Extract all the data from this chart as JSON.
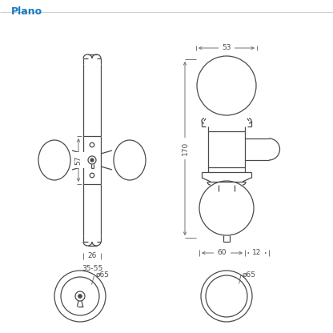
{
  "title": "Plano",
  "title_color": "#1a7abf",
  "bg_color": "#ffffff",
  "line_color": "#4a4a4a",
  "dim_color": "#4a4a4a",
  "dim_line_color": "#6a6a6a",
  "fig_width": 4.16,
  "fig_height": 4.16,
  "dpi": 100,
  "annotations": {
    "dim_53": "53",
    "dim_170": "170",
    "dim_57": "57",
    "dim_26": "26",
    "dim_3555": "35-55",
    "dim_60": "60",
    "dim_12": "12",
    "dim_o65_left": "ø65",
    "dim_o65_right": "ø65"
  }
}
